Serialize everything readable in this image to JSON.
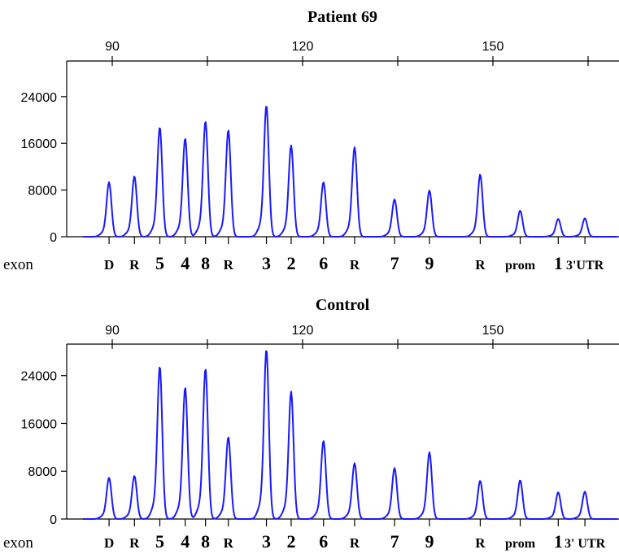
{
  "chart_data": [
    {
      "type": "line",
      "title": "Patient 69",
      "top_axis_ticks": [
        90,
        120,
        150
      ],
      "y_ticks": [
        0,
        8000,
        16000,
        24000
      ],
      "ylim": [
        0,
        29000
      ],
      "xlim": [
        84,
        167
      ],
      "xlabel": "exon",
      "trace_color": "#1a1aff",
      "peaks": [
        {
          "label": "D",
          "x": 89.5,
          "y": 9200
        },
        {
          "label": "R",
          "x": 93.5,
          "y": 10200
        },
        {
          "label": "5",
          "x": 97.5,
          "y": 18500
        },
        {
          "label": "4",
          "x": 101.5,
          "y": 16600
        },
        {
          "label": "8",
          "x": 104.7,
          "y": 19500
        },
        {
          "label": "R",
          "x": 108.3,
          "y": 18000
        },
        {
          "label": "3",
          "x": 114.3,
          "y": 22200
        },
        {
          "label": "2",
          "x": 118.2,
          "y": 15400
        },
        {
          "label": "6",
          "x": 123.3,
          "y": 9200
        },
        {
          "label": "R",
          "x": 128.2,
          "y": 15100
        },
        {
          "label": "7",
          "x": 134.5,
          "y": 6300
        },
        {
          "label": "9",
          "x": 140.0,
          "y": 7800
        },
        {
          "label": "R",
          "x": 148.0,
          "y": 10500
        },
        {
          "label": "prom",
          "x": 154.3,
          "y": 4400
        },
        {
          "label": "1",
          "x": 160.3,
          "y": 3000
        },
        {
          "label": "3'UTR",
          "x": 164.5,
          "y": 3100
        }
      ]
    },
    {
      "type": "line",
      "title": "Control",
      "top_axis_ticks": [
        90,
        120,
        150
      ],
      "y_ticks": [
        0,
        8000,
        16000,
        24000
      ],
      "ylim": [
        0,
        29000
      ],
      "xlim": [
        84,
        167
      ],
      "xlabel": "exon",
      "trace_color": "#1a1aff",
      "peaks": [
        {
          "label": "D",
          "x": 89.5,
          "y": 6800
        },
        {
          "label": "R",
          "x": 93.5,
          "y": 7100
        },
        {
          "label": "5",
          "x": 97.5,
          "y": 25200
        },
        {
          "label": "4",
          "x": 101.5,
          "y": 21700
        },
        {
          "label": "8",
          "x": 104.7,
          "y": 24800
        },
        {
          "label": "R",
          "x": 108.3,
          "y": 13500
        },
        {
          "label": "3",
          "x": 114.3,
          "y": 28000
        },
        {
          "label": "2",
          "x": 118.2,
          "y": 21000
        },
        {
          "label": "6",
          "x": 123.3,
          "y": 12900
        },
        {
          "label": "R",
          "x": 128.2,
          "y": 9200
        },
        {
          "label": "7",
          "x": 134.5,
          "y": 8400
        },
        {
          "label": "9",
          "x": 140.0,
          "y": 11000
        },
        {
          "label": "R",
          "x": 148.0,
          "y": 6300
        },
        {
          "label": "prom",
          "x": 154.3,
          "y": 6400
        },
        {
          "label": "1",
          "x": 160.3,
          "y": 4400
        },
        {
          "label": "3' UTR",
          "x": 164.5,
          "y": 4500
        }
      ]
    }
  ]
}
